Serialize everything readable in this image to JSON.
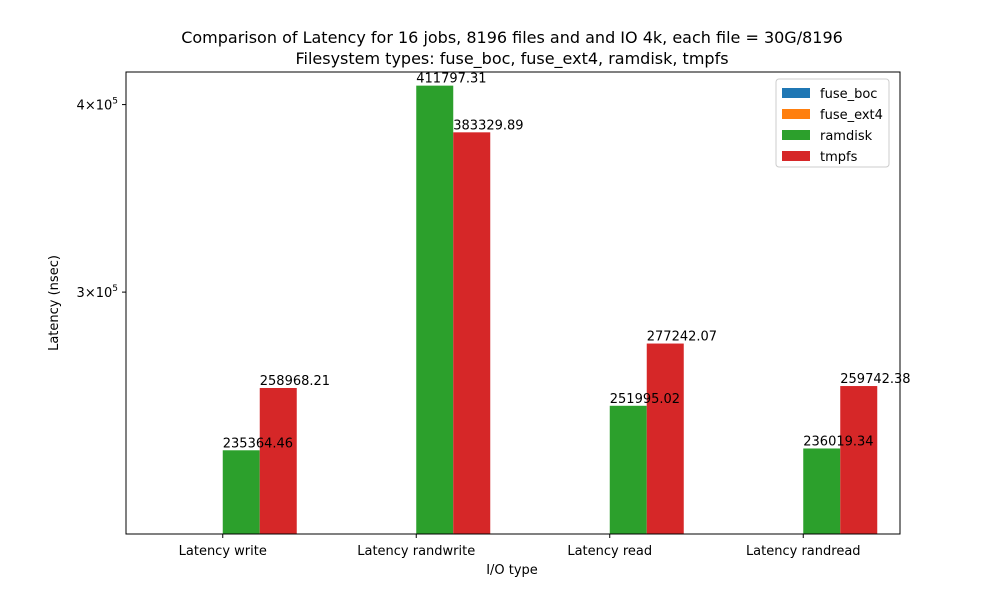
{
  "chart_data": {
    "type": "bar",
    "title": "Comparison of Latency for 16 jobs, 8196 files and  and IO 4k, each file = 30G/8196",
    "subtitle": "Filesystem types: fuse_boc, fuse_ext4, ramdisk, tmpfs",
    "xlabel": "I/O type",
    "ylabel": "Latency (nsec)",
    "yscale": "log",
    "ylim": [
      207000,
      420500
    ],
    "yticks": [
      {
        "value": 300000,
        "base": "3×10",
        "exp": "5"
      },
      {
        "value": 400000,
        "base": "4×10",
        "exp": "5"
      }
    ],
    "categories": [
      "Latency write",
      "Latency randwrite",
      "Latency read",
      "Latency randread"
    ],
    "series": [
      {
        "name": "fuse_boc",
        "color": "#1f77b4",
        "values": [
          null,
          null,
          null,
          null
        ]
      },
      {
        "name": "fuse_ext4",
        "color": "#ff7f0e",
        "values": [
          null,
          null,
          null,
          null
        ]
      },
      {
        "name": "ramdisk",
        "color": "#2ca02c",
        "values": [
          235364.46,
          411797.31,
          251995.02,
          236019.34
        ]
      },
      {
        "name": "tmpfs",
        "color": "#d62728",
        "values": [
          258968.21,
          383329.89,
          277242.07,
          259742.38
        ]
      }
    ],
    "legend": {
      "position": "top-right"
    },
    "grid": false
  }
}
